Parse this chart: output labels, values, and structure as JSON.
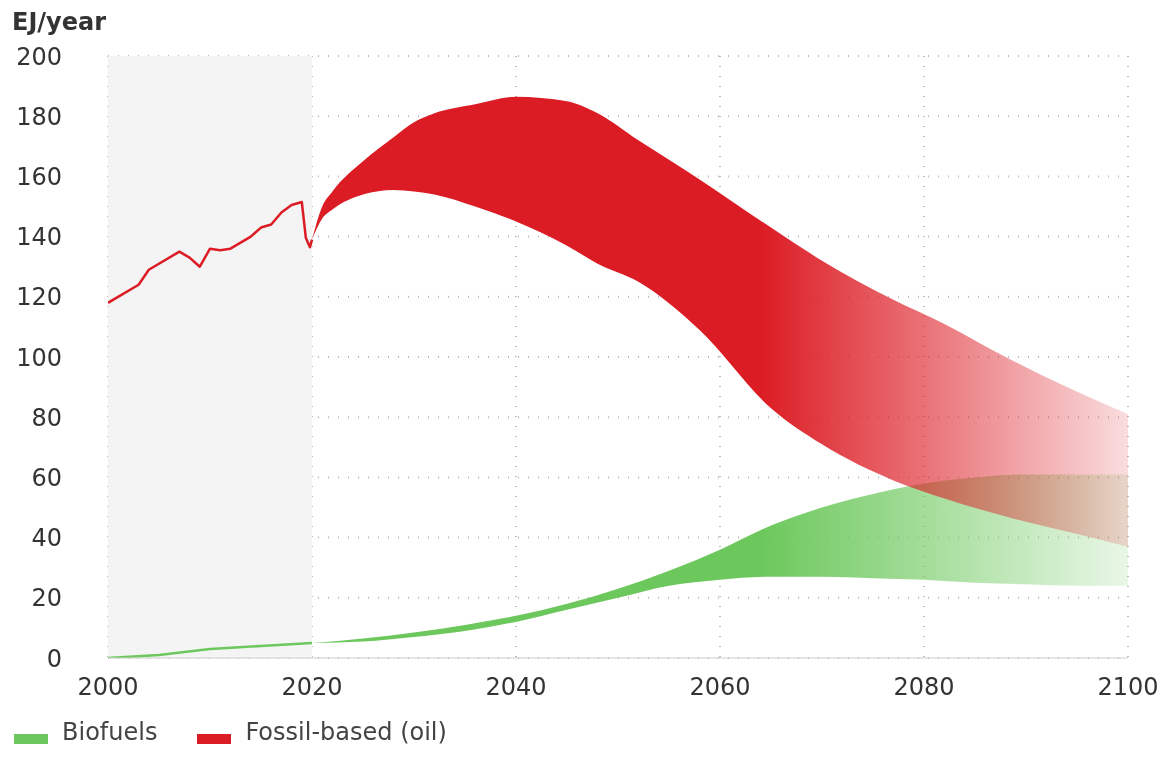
{
  "chart_data": {
    "type": "line",
    "ylabel": "EJ/year",
    "xlim": [
      2000,
      2100
    ],
    "xticks": [
      2000,
      2020,
      2040,
      2060,
      2080,
      2100
    ],
    "ylim": [
      0,
      200
    ],
    "yticks": [
      0,
      20,
      40,
      60,
      80,
      100,
      120,
      140,
      160,
      180,
      200
    ],
    "grid": true,
    "legend": "bottom left",
    "bands": [
      {
        "axis": "x",
        "from": 2000,
        "to": 2020,
        "color": "#f4f4f4"
      }
    ],
    "series": [
      {
        "name": "Biofuels",
        "color": "#6cc85c",
        "x": [
          2000,
          2005,
          2010,
          2015,
          2020,
          2025,
          2030,
          2035,
          2040,
          2045,
          2050,
          2055,
          2060,
          2065,
          2070,
          2075,
          2080,
          2085,
          2090,
          2095,
          2100
        ],
        "values": [
          0,
          1,
          3,
          4,
          5,
          null,
          null,
          null,
          null,
          null,
          null,
          null,
          null,
          null,
          null,
          null,
          null,
          null,
          null,
          null,
          null
        ],
        "lower": [
          null,
          null,
          null,
          null,
          5,
          5.5,
          7,
          9,
          12,
          16,
          20,
          24,
          26,
          27,
          27,
          26.5,
          26,
          25,
          24.5,
          24,
          24
        ],
        "upper": [
          null,
          null,
          null,
          null,
          5,
          6.5,
          8.5,
          11,
          14,
          18,
          23,
          29,
          36,
          44,
          50,
          54.5,
          58,
          60,
          61,
          61,
          61
        ]
      },
      {
        "name": "Fossil-based (oil)",
        "color": "#dc1c24",
        "x": [
          2000,
          2003,
          2004,
          2007,
          2008,
          2009,
          2010,
          2011,
          2012,
          2014,
          2015,
          2016,
          2017,
          2018,
          2019,
          2019.4,
          2019.8,
          2020,
          2021,
          2022,
          2025,
          2028,
          2030,
          2032,
          2036,
          2040,
          2045,
          2048,
          2052,
          2058,
          2065,
          2070,
          2077,
          2082,
          2088,
          2094,
          2100
        ],
        "values": [
          118,
          124,
          129,
          135,
          133,
          130,
          136,
          135.5,
          136,
          140,
          143,
          144,
          148,
          150.5,
          151.5,
          139.5,
          136.5,
          139,
          null,
          null,
          null,
          null,
          null,
          null,
          null,
          null,
          null,
          null,
          null,
          null,
          null,
          null,
          null,
          null,
          null,
          null,
          null
        ],
        "lower": [
          null,
          null,
          null,
          null,
          null,
          null,
          null,
          null,
          null,
          null,
          null,
          null,
          null,
          null,
          null,
          null,
          null,
          139,
          146,
          149,
          154,
          155.5,
          155,
          154,
          150,
          145,
          137,
          131,
          125,
          109,
          83,
          71,
          59,
          53,
          47,
          42,
          37
        ],
        "upper": [
          null,
          null,
          null,
          null,
          null,
          null,
          null,
          null,
          null,
          null,
          null,
          null,
          null,
          null,
          null,
          null,
          null,
          139,
          150,
          155,
          165,
          173,
          178,
          181,
          184,
          186.5,
          185,
          181,
          172,
          159,
          143,
          132,
          119,
          111,
          100,
          90,
          81
        ]
      }
    ]
  }
}
